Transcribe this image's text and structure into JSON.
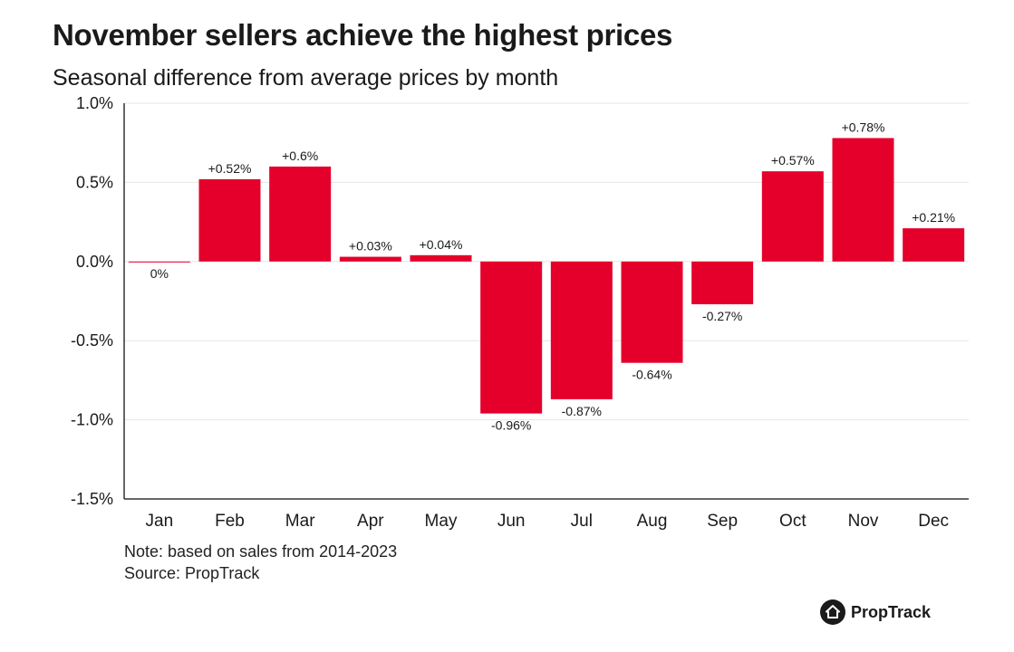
{
  "header": {
    "title": "November sellers achieve the highest prices",
    "subtitle": "Seasonal difference from average prices by month"
  },
  "footer": {
    "note": "Note: based on sales from 2014-2023",
    "source": "Source: PropTrack",
    "brand": "PropTrack"
  },
  "colors": {
    "bar": "#e4002b",
    "grid": "#e6e6e6",
    "axis": "#333333",
    "text": "#1a1a1a"
  },
  "chart_data": {
    "type": "bar",
    "title": "November sellers achieve the highest prices",
    "subtitle": "Seasonal difference from average prices by month",
    "xlabel": "",
    "ylabel": "",
    "categories": [
      "Jan",
      "Feb",
      "Mar",
      "Apr",
      "May",
      "Jun",
      "Jul",
      "Aug",
      "Sep",
      "Oct",
      "Nov",
      "Dec"
    ],
    "values": [
      0,
      0.52,
      0.6,
      0.03,
      0.04,
      -0.96,
      -0.87,
      -0.64,
      -0.27,
      0.57,
      0.78,
      0.21
    ],
    "data_labels": [
      "0%",
      "+0.52%",
      "+0.6%",
      "+0.03%",
      "+0.04%",
      "-0.96%",
      "-0.87%",
      "-0.64%",
      "-0.27%",
      "+0.57%",
      "+0.78%",
      "+0.21%"
    ],
    "yticks": [
      1.0,
      0.5,
      0.0,
      -0.5,
      -1.0,
      -1.5
    ],
    "ytick_labels": [
      "1.0%",
      "0.5%",
      "0.0%",
      "-0.5%",
      "-1.0%",
      "-1.5%"
    ],
    "ylim": [
      -1.5,
      1.0
    ],
    "grid": true,
    "legend": "none"
  }
}
